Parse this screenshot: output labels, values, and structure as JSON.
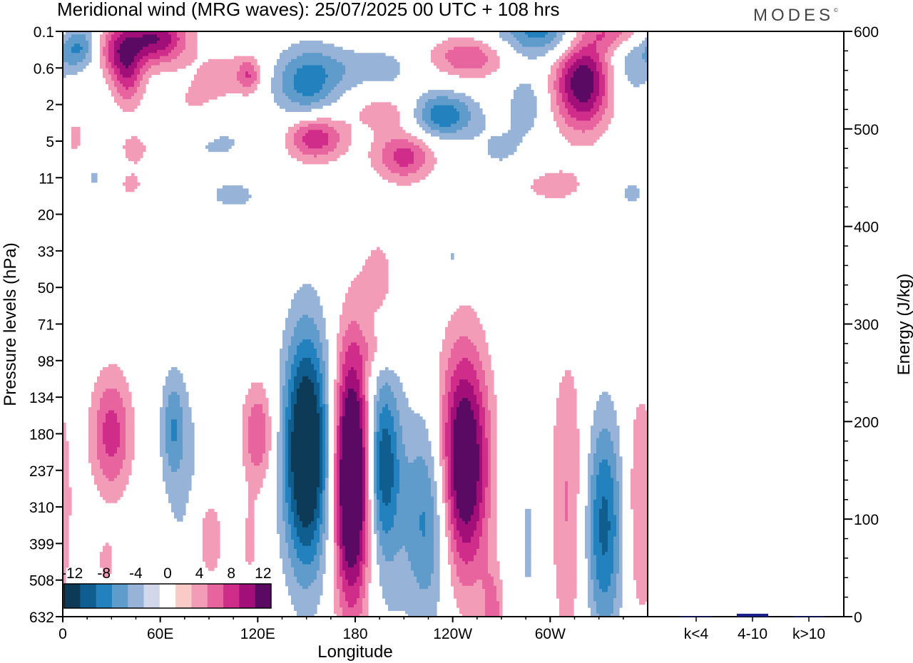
{
  "title": "Meridional wind (MRG waves):  25/07/2025  00 UTC  + 108 hrs",
  "logo": "MODES",
  "logo_mark": "©",
  "colors": {
    "neg": [
      "#0d3b57",
      "#0f5e8f",
      "#2381bd",
      "#5f9bcb",
      "#98b3d8",
      "#d2d8e9"
    ],
    "zero": "#ffffff",
    "pos": [
      "#f8cbc6",
      "#f29cb8",
      "#e8649f",
      "#d02d8b",
      "#a20f78",
      "#5a0a63"
    ],
    "energy_bar": "#1a1f8a"
  },
  "chart_data": [
    {
      "type": "heatmap",
      "title": "Meridional wind (MRG waves):  25/07/2025  00 UTC  + 108 hrs",
      "xlabel": "Longitude",
      "ylabel": "Pressure levels (hPa)",
      "x_ticks": [
        {
          "lon": 0,
          "label": "0"
        },
        {
          "lon": 60,
          "label": "60E"
        },
        {
          "lon": 120,
          "label": "120E"
        },
        {
          "lon": 180,
          "label": "180"
        },
        {
          "lon": 240,
          "label": "120W"
        },
        {
          "lon": 300,
          "label": "60W"
        }
      ],
      "x_range": [
        0,
        360
      ],
      "y_levels": [
        "0.1",
        "0.6",
        "2",
        "5",
        "11",
        "20",
        "33",
        "50",
        "71",
        "98",
        "134",
        "180",
        "237",
        "310",
        "399",
        "508",
        "632"
      ],
      "colorbar": {
        "levels": [
          -12,
          -10,
          -8,
          -6,
          -4,
          -2,
          0,
          2,
          4,
          6,
          8,
          10,
          12
        ],
        "labels": [
          "-12",
          "-8",
          "-4",
          "0",
          "4",
          "8",
          "12"
        ],
        "label_values": [
          -12,
          -8,
          -4,
          0,
          4,
          8,
          12
        ]
      },
      "features": [
        {
          "lon": 10,
          "lvl": 0.4,
          "v": -7,
          "slon": 9,
          "slvl": 0.45
        },
        {
          "lon": 30,
          "lvl": 0.5,
          "v": 5,
          "slon": 9,
          "slvl": 0.5
        },
        {
          "lon": 40,
          "lvl": 1.1,
          "v": 7,
          "slon": 7,
          "slvl": 0.7
        },
        {
          "lon": 57,
          "lvl": 0.2,
          "v": 10,
          "slon": 14,
          "slvl": 0.5
        },
        {
          "lon": 45,
          "lvl": 3.2,
          "v": 3,
          "slon": 10,
          "slvl": 0.4
        },
        {
          "lon": 8,
          "lvl": 3.0,
          "v": 2.5,
          "slon": 6,
          "slvl": 0.7
        },
        {
          "lon": 80,
          "lvl": 2.1,
          "v": 2.5,
          "slon": 12,
          "slvl": 0.6
        },
        {
          "lon": 100,
          "lvl": 1.2,
          "v": 3,
          "slon": 12,
          "slvl": 0.5
        },
        {
          "lon": 115,
          "lvl": 1.2,
          "v": 5,
          "slon": 5,
          "slvl": 0.35
        },
        {
          "lon": 150,
          "lvl": 1.4,
          "v": -7,
          "slon": 14,
          "slvl": 0.7
        },
        {
          "lon": 175,
          "lvl": 1.0,
          "v": -2.5,
          "slon": 14,
          "slvl": 0.45
        },
        {
          "lon": 200,
          "lvl": 1.0,
          "v": -2.5,
          "slon": 10,
          "slvl": 0.4
        },
        {
          "lon": 155,
          "lvl": 2.9,
          "v": 8,
          "slon": 13,
          "slvl": 0.45
        },
        {
          "lon": 200,
          "lvl": 2.2,
          "v": 3.5,
          "slon": 16,
          "slvl": 0.35
        },
        {
          "lon": 210,
          "lvl": 3.4,
          "v": 7,
          "slon": 13,
          "slvl": 0.5
        },
        {
          "lon": 233,
          "lvl": 2.3,
          "v": -8,
          "slon": 15,
          "slvl": 0.45
        },
        {
          "lon": 250,
          "lvl": 0.7,
          "v": 6,
          "slon": 16,
          "slvl": 0.4
        },
        {
          "lon": 295,
          "lvl": 0.0,
          "v": -7,
          "slon": 20,
          "slvl": 0.5
        },
        {
          "lon": 320,
          "lvl": 1.4,
          "v": 12,
          "slon": 12,
          "slvl": 0.9
        },
        {
          "lon": 340,
          "lvl": 0.0,
          "v": 6,
          "slon": 16,
          "slvl": 0.35
        },
        {
          "lon": 350,
          "lvl": 0.8,
          "v": -3.5,
          "slon": 9,
          "slvl": 0.8
        },
        {
          "lon": 285,
          "lvl": 2.0,
          "v": -3.5,
          "slon": 8,
          "slvl": 0.6
        },
        {
          "lon": 90,
          "lvl": 3.0,
          "v": -2.5,
          "slon": 25,
          "slvl": 0.6
        },
        {
          "lon": 270,
          "lvl": 3.3,
          "v": -2.5,
          "slon": 12,
          "slvl": 0.5
        },
        {
          "lon": 40,
          "lvl": 4.2,
          "v": 2.5,
          "slon": 10,
          "slvl": 0.35
        },
        {
          "lon": 105,
          "lvl": 4.5,
          "v": -2.5,
          "slon": 14,
          "slvl": 0.35
        },
        {
          "lon": 300,
          "lvl": 4.2,
          "v": 2.5,
          "slon": 22,
          "slvl": 0.5
        },
        {
          "lon": 350,
          "lvl": 4.4,
          "v": -2.5,
          "slon": 8,
          "slvl": 0.4
        },
        {
          "lon": 20,
          "lvl": 4.0,
          "v": -2.5,
          "slon": 10,
          "slvl": 0.5
        },
        {
          "lon": 195,
          "lvl": 6.8,
          "v": 3,
          "slon": 8,
          "slvl": 1.0
        },
        {
          "lon": 240,
          "lvl": 6.2,
          "v": -2.5,
          "slon": 5,
          "slvl": 0.5
        },
        {
          "lon": 200,
          "lvl": 8.7,
          "v": 2.5,
          "slon": 12,
          "slvl": 0.35
        },
        {
          "lon": 150,
          "lvl": 11.5,
          "v": -15,
          "slon": 10,
          "slvl": 2.3
        },
        {
          "lon": 178,
          "lvl": 12.2,
          "v": 17,
          "slon": 8,
          "slvl": 2.5
        },
        {
          "lon": 197,
          "lvl": 11.8,
          "v": -8,
          "slon": 7,
          "slvl": 1.6
        },
        {
          "lon": 225,
          "lvl": 13.3,
          "v": -7,
          "slon": 10,
          "slvl": 2.0
        },
        {
          "lon": 247,
          "lvl": 11.8,
          "v": 14,
          "slon": 11,
          "slvl": 2.2
        },
        {
          "lon": 290,
          "lvl": 13.8,
          "v": -2.5,
          "slon": 12,
          "slvl": 3.5
        },
        {
          "lon": 310,
          "lvl": 13.0,
          "v": 5,
          "slon": 10,
          "slvl": 3.0
        },
        {
          "lon": 333,
          "lvl": 13.5,
          "v": -9,
          "slon": 9,
          "slvl": 2.2
        },
        {
          "lon": 355,
          "lvl": 13.0,
          "v": 4,
          "slon": 8,
          "slvl": 2.5
        },
        {
          "lon": 120,
          "lvl": 11.0,
          "v": 6,
          "slon": 7,
          "slvl": 1.0
        },
        {
          "lon": 80,
          "lvl": 12.8,
          "v": -2.5,
          "slon": 14,
          "slvl": 2.5
        },
        {
          "lon": 68,
          "lvl": 10.8,
          "v": -5,
          "slon": 5,
          "slvl": 1.0
        },
        {
          "lon": 30,
          "lvl": 11.0,
          "v": 7,
          "slon": 9,
          "slvl": 1.2
        },
        {
          "lon": 90,
          "lvl": 13.8,
          "v": 5,
          "slon": 7,
          "slvl": 1.1
        },
        {
          "lon": 115,
          "lvl": 14.0,
          "v": 2.5,
          "slon": 5,
          "slvl": 1.0
        },
        {
          "lon": 27,
          "lvl": 14.5,
          "v": 2.5,
          "slon": 5,
          "slvl": 0.6
        },
        {
          "lon": 265,
          "lvl": 16.0,
          "v": 5,
          "slon": 5,
          "slvl": 1.0
        },
        {
          "lon": 200,
          "lvl": 13.0,
          "v": -2.5,
          "slon": 10,
          "slvl": 3.0
        }
      ]
    },
    {
      "type": "bar",
      "ylabel": "Energy (J/kg)",
      "ylim": [
        0,
        600
      ],
      "y_ticks": [
        0,
        100,
        200,
        300,
        400,
        500,
        600
      ],
      "categories": [
        "k<4",
        "4-10",
        "k>10"
      ],
      "values": [
        0.5,
        3,
        0.5
      ]
    }
  ]
}
